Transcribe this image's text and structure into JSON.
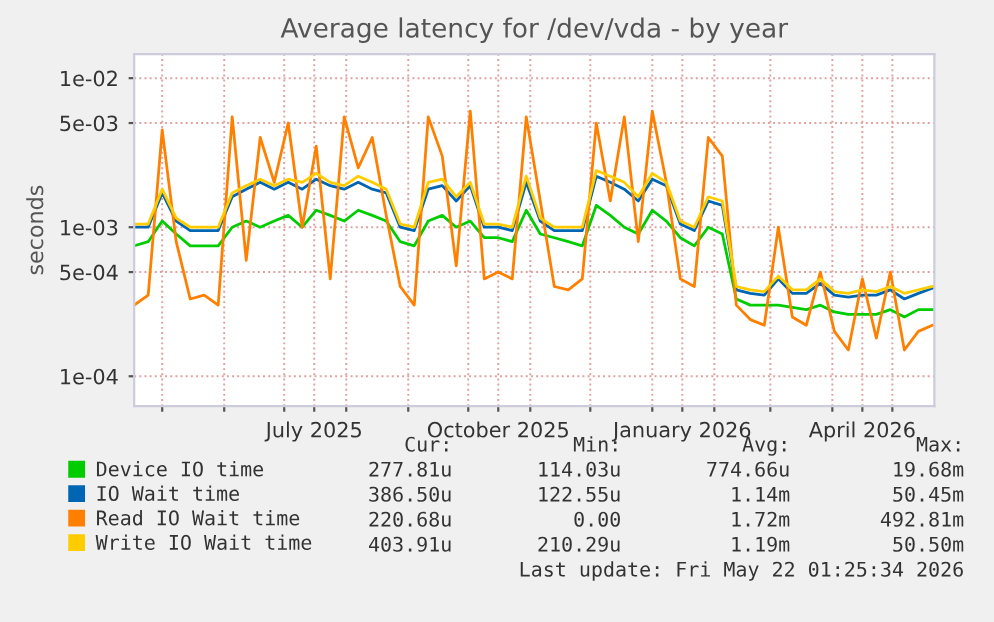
{
  "chart_data": {
    "type": "line",
    "title": "Average latency for /dev/vda - by year",
    "ylabel": "seconds",
    "x": [
      "2025-04-17",
      "2025-04-24",
      "2025-05-01",
      "2025-05-08",
      "2025-05-15",
      "2025-05-22",
      "2025-05-29",
      "2025-06-05",
      "2025-06-12",
      "2025-06-19",
      "2025-06-26",
      "2025-07-03",
      "2025-07-10",
      "2025-07-17",
      "2025-07-24",
      "2025-07-31",
      "2025-08-07",
      "2025-08-14",
      "2025-08-21",
      "2025-08-28",
      "2025-09-04",
      "2025-09-11",
      "2025-09-18",
      "2025-09-25",
      "2025-10-02",
      "2025-10-09",
      "2025-10-16",
      "2025-10-23",
      "2025-10-30",
      "2025-11-06",
      "2025-11-13",
      "2025-11-20",
      "2025-11-27",
      "2025-12-04",
      "2025-12-11",
      "2025-12-18",
      "2025-12-25",
      "2026-01-01",
      "2026-01-08",
      "2026-01-15",
      "2026-01-22",
      "2026-01-29",
      "2026-02-05",
      "2026-02-12",
      "2026-02-19",
      "2026-02-26",
      "2026-03-05",
      "2026-03-12",
      "2026-03-19",
      "2026-03-26",
      "2026-04-02",
      "2026-04-09",
      "2026-04-16",
      "2026-04-23",
      "2026-04-30",
      "2026-05-07",
      "2026-05-14",
      "2026-05-21"
    ],
    "series": [
      {
        "name": "Device IO time",
        "color": "#00cc00",
        "values": [
          0.00075,
          0.0008,
          0.0011,
          0.0009,
          0.00075,
          0.00075,
          0.00075,
          0.001,
          0.0011,
          0.001,
          0.0011,
          0.0012,
          0.001,
          0.0013,
          0.0012,
          0.0011,
          0.0013,
          0.0012,
          0.0011,
          0.0008,
          0.00075,
          0.0011,
          0.0012,
          0.001,
          0.0011,
          0.00085,
          0.00085,
          0.0008,
          0.0013,
          0.0009,
          0.00085,
          0.0008,
          0.00075,
          0.0014,
          0.0012,
          0.001,
          0.0009,
          0.0013,
          0.0011,
          0.00085,
          0.00075,
          0.001,
          0.0009,
          0.00033,
          0.0003,
          0.0003,
          0.0003,
          0.00029,
          0.00028,
          0.0003,
          0.00027,
          0.00026,
          0.00026,
          0.00026,
          0.00028,
          0.00025,
          0.00028,
          0.00028
        ]
      },
      {
        "name": "IO Wait time",
        "color": "#0066b3",
        "values": [
          0.001,
          0.001,
          0.0017,
          0.0011,
          0.00095,
          0.00095,
          0.00095,
          0.0016,
          0.0018,
          0.002,
          0.0018,
          0.002,
          0.0018,
          0.0021,
          0.0019,
          0.0018,
          0.002,
          0.0018,
          0.0017,
          0.001,
          0.00095,
          0.0018,
          0.0019,
          0.0015,
          0.0019,
          0.001,
          0.001,
          0.00095,
          0.002,
          0.0011,
          0.00095,
          0.00095,
          0.00095,
          0.0022,
          0.002,
          0.0018,
          0.0015,
          0.0021,
          0.0019,
          0.00105,
          0.00095,
          0.0015,
          0.0014,
          0.00038,
          0.00036,
          0.00035,
          0.00045,
          0.00036,
          0.00036,
          0.00042,
          0.00035,
          0.00034,
          0.00035,
          0.00035,
          0.00038,
          0.00033,
          0.00036,
          0.00039
        ]
      },
      {
        "name": "Read IO Wait time",
        "color": "#ff8000",
        "values": [
          0.0003,
          0.00035,
          0.0045,
          0.0008,
          0.00033,
          0.00035,
          0.0003,
          0.0055,
          0.0006,
          0.004,
          0.002,
          0.005,
          0.001,
          0.0035,
          0.00045,
          0.0055,
          0.0025,
          0.004,
          0.0012,
          0.0004,
          0.0003,
          0.0055,
          0.003,
          0.00055,
          0.006,
          0.00045,
          0.0005,
          0.00045,
          0.0055,
          0.0015,
          0.0004,
          0.00038,
          0.00045,
          0.005,
          0.0015,
          0.0055,
          0.0008,
          0.006,
          0.002,
          0.00045,
          0.0004,
          0.004,
          0.003,
          0.0003,
          0.00024,
          0.00022,
          0.001,
          0.00025,
          0.00022,
          0.0005,
          0.0002,
          0.00015,
          0.00045,
          0.00018,
          0.0005,
          0.00015,
          0.0002,
          0.00022
        ]
      },
      {
        "name": "Write IO Wait time",
        "color": "#ffcc00",
        "values": [
          0.00105,
          0.00105,
          0.0018,
          0.00115,
          0.001,
          0.001,
          0.001,
          0.0017,
          0.0019,
          0.0021,
          0.0019,
          0.0021,
          0.002,
          0.0023,
          0.002,
          0.0019,
          0.0022,
          0.002,
          0.0018,
          0.00105,
          0.001,
          0.002,
          0.0021,
          0.0016,
          0.002,
          0.00105,
          0.00105,
          0.001,
          0.0022,
          0.00115,
          0.001,
          0.001,
          0.001,
          0.0024,
          0.0022,
          0.002,
          0.0016,
          0.0023,
          0.002,
          0.0011,
          0.001,
          0.0016,
          0.0015,
          0.0004,
          0.00038,
          0.00037,
          0.00047,
          0.00038,
          0.00038,
          0.00045,
          0.00037,
          0.00036,
          0.00038,
          0.00037,
          0.0004,
          0.00036,
          0.00038,
          0.0004
        ]
      }
    ],
    "log": "y",
    "ylim": [
      6.3e-05,
      0.0145
    ],
    "yticks": [
      {
        "value": 0.0001,
        "label": "1e-04"
      },
      {
        "value": 0.0005,
        "label": "5e-04"
      },
      {
        "value": 0.001,
        "label": "1e-03"
      },
      {
        "value": 0.005,
        "label": "5e-03"
      },
      {
        "value": 0.01,
        "label": "1e-02"
      }
    ],
    "xlim": [
      "2025-04-17",
      "2026-05-22"
    ],
    "xticks": [
      {
        "value": "2025-05-01",
        "label": null
      },
      {
        "value": "2025-06-01",
        "label": null
      },
      {
        "value": "2025-07-01",
        "label": null
      },
      {
        "value": "2025-07-16",
        "label": "July 2025"
      },
      {
        "value": "2025-08-01",
        "label": null
      },
      {
        "value": "2025-09-01",
        "label": null
      },
      {
        "value": "2025-10-01",
        "label": null
      },
      {
        "value": "2025-10-16",
        "label": "October 2025"
      },
      {
        "value": "2025-11-01",
        "label": null
      },
      {
        "value": "2025-12-01",
        "label": null
      },
      {
        "value": "2026-01-01",
        "label": null
      },
      {
        "value": "2026-01-16",
        "label": "January 2026"
      },
      {
        "value": "2026-02-01",
        "label": null
      },
      {
        "value": "2026-03-01",
        "label": null
      },
      {
        "value": "2026-04-01",
        "label": null
      },
      {
        "value": "2026-04-16",
        "label": "April 2026"
      },
      {
        "value": "2026-05-01",
        "label": null
      }
    ],
    "grid": true,
    "legend": "bottom",
    "marker": "none",
    "line_style": "solid",
    "annotations": [
      "Cur:",
      "Min:",
      "Avg:",
      "Max:",
      "277.81u",
      "114.03u",
      "774.66u",
      "19.68m",
      "386.50u",
      "122.55u",
      "1.14m",
      "50.45m",
      "220.68u",
      "0.00",
      "1.72m",
      "492.81m",
      "403.91u",
      "210.29u",
      "1.19m",
      "50.50m",
      "Last update: Fri May 22 01:25:34 2026"
    ]
  }
}
